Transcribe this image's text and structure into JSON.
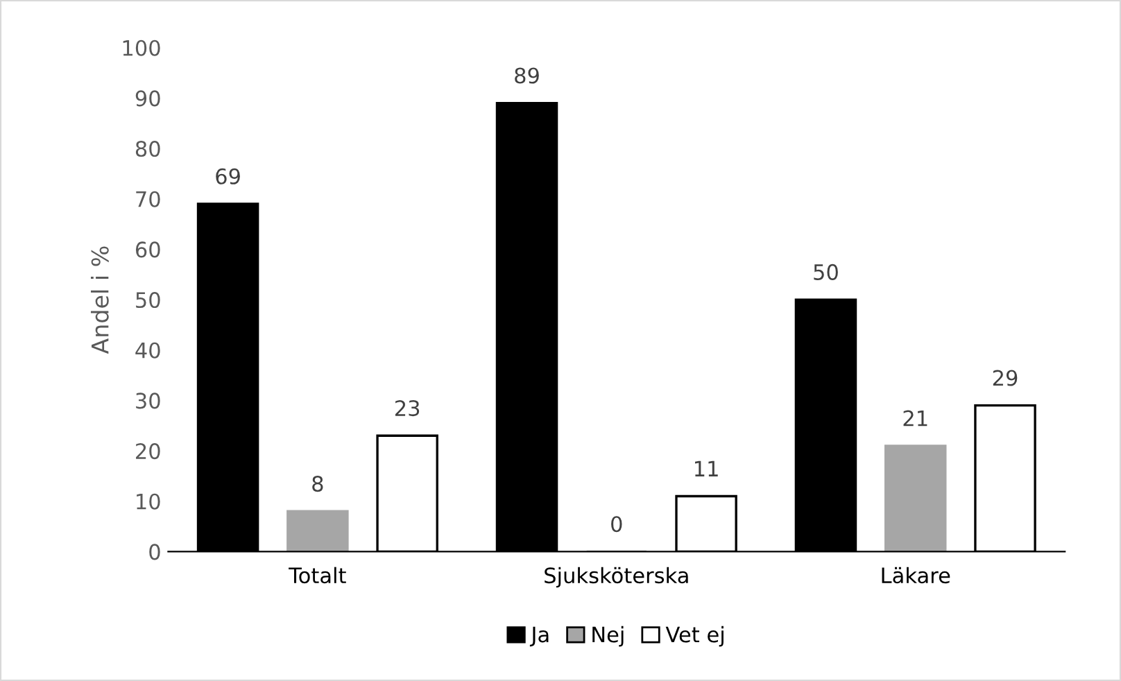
{
  "chart_data": {
    "type": "bar",
    "ylabel": "Andel i %",
    "categories": [
      "Totalt",
      "Sjuksköterska",
      "Läkare"
    ],
    "series": [
      {
        "name": "Ja",
        "color": "#000000",
        "values": [
          69,
          89,
          50
        ]
      },
      {
        "name": "Nej",
        "color": "#a6a6a6",
        "values": [
          8,
          0,
          21
        ]
      },
      {
        "name": "Vet ej",
        "color": "#ffffff",
        "values": [
          23,
          11,
          29
        ]
      }
    ],
    "ylim": [
      0,
      100
    ],
    "yticks": [
      0,
      10,
      20,
      30,
      40,
      50,
      60,
      70,
      80,
      90,
      100
    ],
    "data_labels": true,
    "grid": false,
    "legend": "bottom"
  }
}
